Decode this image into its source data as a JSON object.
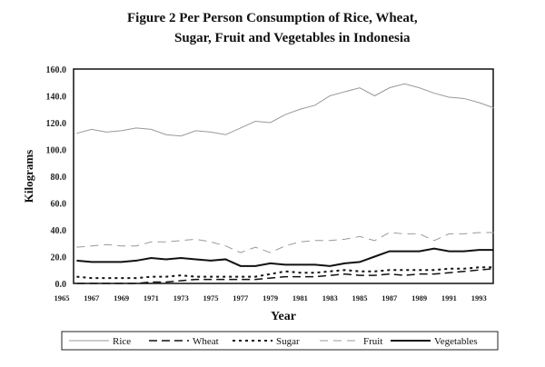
{
  "chart_data": {
    "type": "line",
    "title_line1": "Figure 2  Per Person Consumption of Rice, Wheat,",
    "title_line2": "Sugar, Fruit and Vegetables in Indonesia",
    "xlabel": "Year",
    "ylabel": "Kilograms",
    "ylim": [
      0,
      160
    ],
    "yticks": [
      "0.0",
      "20.0",
      "40.0",
      "60.0",
      "80.0",
      "100.0",
      "120.0",
      "140.0",
      "160.0"
    ],
    "xticks": [
      "1965",
      "1967",
      "1969",
      "1971",
      "1973",
      "1975",
      "1977",
      "1979",
      "1981",
      "1983",
      "1985",
      "1987",
      "1989",
      "1991",
      "1993"
    ],
    "x": [
      1966,
      1967,
      1968,
      1969,
      1970,
      1971,
      1972,
      1973,
      1974,
      1975,
      1976,
      1977,
      1978,
      1979,
      1980,
      1981,
      1982,
      1983,
      1984,
      1985,
      1986,
      1987,
      1988,
      1989,
      1990,
      1991,
      1992,
      1993,
      1994
    ],
    "grid": false,
    "legend": "bottom",
    "series": [
      {
        "name": "Rice",
        "color": "#999999",
        "dash": "",
        "width": 1,
        "values": [
          112,
          115,
          113,
          114,
          116,
          115,
          111,
          110,
          114,
          113,
          111,
          116,
          121,
          120,
          126,
          130,
          133,
          140,
          143,
          146,
          140,
          146,
          149,
          146,
          142,
          139,
          138,
          135,
          131
        ]
      },
      {
        "name": "Wheat",
        "color": "#111111",
        "dash": "9,5",
        "width": 1.5,
        "values": [
          0,
          0,
          0,
          0,
          0,
          1,
          1,
          2,
          3,
          3,
          3,
          3,
          3,
          4,
          5,
          5,
          5,
          6,
          7,
          6,
          6,
          7,
          6,
          7,
          7,
          8,
          9,
          10,
          11
        ]
      },
      {
        "name": "Sugar",
        "color": "#111111",
        "dash": "3,4",
        "width": 2,
        "values": [
          5,
          4,
          4,
          4,
          4,
          5,
          5,
          6,
          5,
          5,
          5,
          5,
          5,
          7,
          9,
          8,
          8,
          9,
          10,
          9,
          9,
          10,
          10,
          10,
          10,
          11,
          11,
          12,
          12
        ]
      },
      {
        "name": "Fruit",
        "color": "#999999",
        "dash": "9,6",
        "width": 1,
        "values": [
          27,
          28,
          29,
          28,
          28,
          31,
          31,
          32,
          33,
          31,
          28,
          23,
          27,
          23,
          28,
          31,
          32,
          32,
          33,
          35,
          32,
          38,
          37,
          37,
          32,
          37,
          37,
          38,
          38
        ]
      },
      {
        "name": "Vegetables",
        "color": "#111111",
        "dash": "",
        "width": 2,
        "values": [
          17,
          16,
          16,
          16,
          17,
          19,
          18,
          19,
          18,
          17,
          18,
          13,
          13,
          15,
          14,
          14,
          14,
          13,
          15,
          16,
          20,
          24,
          24,
          24,
          26,
          24,
          24,
          25,
          25
        ]
      }
    ]
  }
}
